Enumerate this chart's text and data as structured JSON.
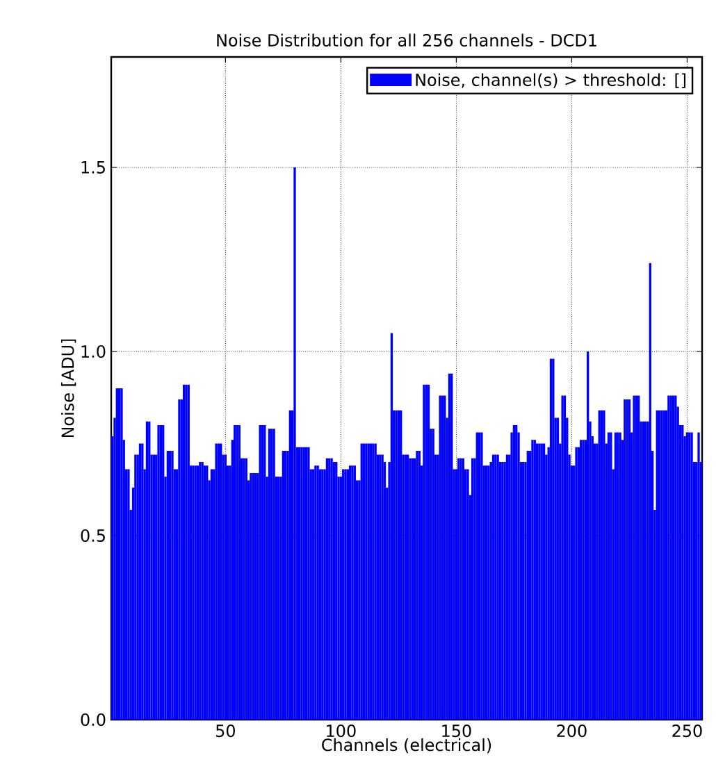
{
  "chart_data": {
    "type": "bar",
    "title": "Noise Distribution for all 256 channels - DCD1",
    "xlabel": "Channels (electrical)",
    "ylabel": "Noise [ADU]",
    "x": [
      1,
      2,
      3,
      4,
      5,
      6,
      7,
      8,
      9,
      10,
      11,
      12,
      13,
      14,
      15,
      16,
      17,
      18,
      19,
      20,
      21,
      22,
      23,
      24,
      25,
      26,
      27,
      28,
      29,
      30,
      31,
      32,
      33,
      34,
      35,
      36,
      37,
      38,
      39,
      40,
      41,
      42,
      43,
      44,
      45,
      46,
      47,
      48,
      49,
      50,
      51,
      52,
      53,
      54,
      55,
      56,
      57,
      58,
      59,
      60,
      61,
      62,
      63,
      64,
      65,
      66,
      67,
      68,
      69,
      70,
      71,
      72,
      73,
      74,
      75,
      76,
      77,
      78,
      79,
      80,
      81,
      82,
      83,
      84,
      85,
      86,
      87,
      88,
      89,
      90,
      91,
      92,
      93,
      94,
      95,
      96,
      97,
      98,
      99,
      100,
      101,
      102,
      103,
      104,
      105,
      106,
      107,
      108,
      109,
      110,
      111,
      112,
      113,
      114,
      115,
      116,
      117,
      118,
      119,
      120,
      121,
      122,
      123,
      124,
      125,
      126,
      127,
      128,
      129,
      130,
      131,
      132,
      133,
      134,
      135,
      136,
      137,
      138,
      139,
      140,
      141,
      142,
      143,
      144,
      145,
      146,
      147,
      148,
      149,
      150,
      151,
      152,
      153,
      154,
      155,
      156,
      157,
      158,
      159,
      160,
      161,
      162,
      163,
      164,
      165,
      166,
      167,
      168,
      169,
      170,
      171,
      172,
      173,
      174,
      175,
      176,
      177,
      178,
      179,
      180,
      181,
      182,
      183,
      184,
      185,
      186,
      187,
      188,
      189,
      190,
      191,
      192,
      193,
      194,
      195,
      196,
      197,
      198,
      199,
      200,
      201,
      202,
      203,
      204,
      205,
      206,
      207,
      208,
      209,
      210,
      211,
      212,
      213,
      214,
      215,
      216,
      217,
      218,
      219,
      220,
      221,
      222,
      223,
      224,
      225,
      226,
      227,
      228,
      229,
      230,
      231,
      232,
      233,
      234,
      235,
      236,
      237,
      238,
      239,
      240,
      241,
      242,
      243,
      244,
      245,
      246,
      247,
      248,
      249,
      250,
      251,
      252,
      253,
      254,
      255,
      256
    ],
    "series": [
      {
        "name": "Noise, channel(s) > threshold: []",
        "color": "#0000ff",
        "values": [
          0.77,
          0.82,
          0.9,
          0.9,
          0.9,
          0.76,
          0.68,
          0.68,
          0.57,
          0.63,
          0.72,
          0.72,
          0.75,
          0.75,
          0.68,
          0.81,
          0.81,
          0.72,
          0.72,
          0.72,
          0.8,
          0.8,
          0.8,
          0.66,
          0.73,
          0.73,
          0.73,
          0.68,
          0.68,
          0.87,
          0.87,
          0.91,
          0.91,
          0.91,
          0.69,
          0.69,
          0.69,
          0.69,
          0.7,
          0.7,
          0.69,
          0.69,
          0.65,
          0.68,
          0.68,
          0.75,
          0.75,
          0.75,
          0.72,
          0.72,
          0.69,
          0.69,
          0.76,
          0.8,
          0.8,
          0.8,
          0.71,
          0.71,
          0.71,
          0.65,
          0.67,
          0.67,
          0.67,
          0.67,
          0.8,
          0.8,
          0.8,
          0.66,
          0.79,
          0.79,
          0.79,
          0.66,
          0.66,
          0.66,
          0.73,
          0.73,
          0.73,
          0.84,
          0.84,
          1.5,
          0.74,
          0.74,
          0.74,
          0.74,
          0.74,
          0.74,
          0.68,
          0.68,
          0.69,
          0.69,
          0.68,
          0.68,
          0.68,
          0.71,
          0.71,
          0.71,
          0.7,
          0.7,
          0.66,
          0.66,
          0.68,
          0.68,
          0.68,
          0.69,
          0.69,
          0.69,
          0.65,
          0.65,
          0.75,
          0.75,
          0.75,
          0.75,
          0.75,
          0.75,
          0.75,
          0.72,
          0.72,
          0.72,
          0.7,
          0.63,
          0.7,
          1.05,
          0.84,
          0.84,
          0.84,
          0.84,
          0.72,
          0.72,
          0.72,
          0.71,
          0.71,
          0.71,
          0.73,
          0.73,
          0.69,
          0.91,
          0.91,
          0.91,
          0.79,
          0.79,
          0.72,
          0.72,
          0.88,
          0.88,
          0.88,
          0.82,
          0.94,
          0.94,
          0.68,
          0.68,
          0.71,
          0.71,
          0.71,
          0.68,
          0.68,
          0.61,
          0.71,
          0.71,
          0.78,
          0.78,
          0.78,
          0.69,
          0.69,
          0.69,
          0.7,
          0.72,
          0.72,
          0.72,
          0.7,
          0.7,
          0.7,
          0.72,
          0.72,
          0.78,
          0.8,
          0.8,
          0.78,
          0.7,
          0.7,
          0.7,
          0.73,
          0.73,
          0.76,
          0.76,
          0.75,
          0.75,
          0.75,
          0.75,
          0.72,
          0.74,
          0.98,
          0.98,
          0.82,
          0.82,
          0.75,
          0.88,
          0.88,
          0.82,
          0.72,
          0.69,
          0.69,
          0.74,
          0.74,
          0.76,
          0.76,
          0.76,
          1.0,
          0.81,
          0.77,
          0.75,
          0.75,
          0.84,
          0.84,
          0.84,
          0.75,
          0.78,
          0.78,
          0.68,
          0.78,
          0.78,
          0.78,
          0.76,
          0.87,
          0.87,
          0.87,
          0.78,
          0.88,
          0.88,
          0.88,
          0.81,
          0.81,
          0.81,
          0.81,
          1.24,
          0.73,
          0.57,
          0.84,
          0.84,
          0.84,
          0.84,
          0.84,
          0.88,
          0.88,
          0.88,
          0.88,
          0.85,
          0.8,
          0.8,
          0.77,
          0.78,
          0.78,
          0.78,
          0.7,
          0.7,
          0.78,
          0.7
        ]
      }
    ],
    "xlim": [
      0.5,
      256.5
    ],
    "ylim": [
      0,
      1.8
    ],
    "xticks": [
      50,
      100,
      150,
      200,
      250
    ],
    "yticks": [
      {
        "value": 0,
        "label": "0.0"
      },
      {
        "value": 0.5,
        "label": "0.5"
      },
      {
        "value": 1.0,
        "label": "1.0"
      },
      {
        "value": 1.5,
        "label": "1.5"
      }
    ],
    "grid": true,
    "legend": "top right"
  }
}
